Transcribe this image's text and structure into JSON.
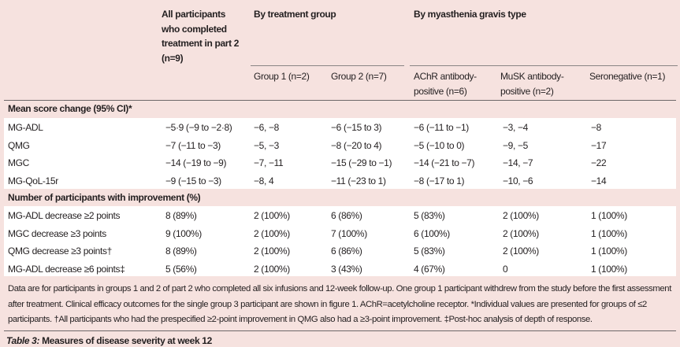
{
  "header": {
    "all_participants": "All participants who completed treatment in part 2 (n=9)",
    "by_treatment_group": "By treatment group",
    "by_mg_type": "By myasthenia gravis type",
    "columns": [
      "Group 1 (n=2)",
      "Group 2 (n=7)",
      "AChR antibody-positive (n=6)",
      "MuSK antibody-positive (n=2)",
      "Seronegative (n=1)"
    ]
  },
  "sections": [
    {
      "title": "Mean score change (95% CI)*",
      "rows": [
        {
          "label": "MG-ADL",
          "values": [
            "−5·9 (−9 to −2·8)",
            "−6, −8",
            "−6 (−15 to 3)",
            "−6 (−11 to −1)",
            "−3, −4",
            "−8"
          ]
        },
        {
          "label": "QMG",
          "values": [
            "−7 (−11 to −3)",
            "−5, −3",
            "−8 (−20 to 4)",
            "−5 (−10 to 0)",
            "−9, −5",
            "−17"
          ]
        },
        {
          "label": "MGC",
          "values": [
            "−14 (−19 to −9)",
            "−7, −11",
            "−15 (−29 to −1)",
            "−14 (−21 to −7)",
            "−14, −7",
            "−22"
          ]
        },
        {
          "label": "MG-QoL-15r",
          "values": [
            "−9 (−15 to −3)",
            "−8, 4",
            "−11 (−23 to 1)",
            "−8 (−17 to 1)",
            "−10, −6",
            "−14"
          ]
        }
      ]
    },
    {
      "title": "Number of participants with improvement (%)",
      "rows": [
        {
          "label": "MG-ADL decrease ≥2 points",
          "values": [
            "8 (89%)",
            "2 (100%)",
            "6 (86%)",
            "5 (83%)",
            "2 (100%)",
            "1 (100%)"
          ]
        },
        {
          "label": "MGC decrease ≥3 points",
          "values": [
            "9 (100%)",
            "2 (100%)",
            "7 (100%)",
            "6 (100%)",
            "2 (100%)",
            "1 (100%)"
          ]
        },
        {
          "label": "QMG decrease ≥3 points†",
          "values": [
            "8 (89%)",
            "2 (100%)",
            "6 (86%)",
            "5 (83%)",
            "2 (100%)",
            "1 (100%)"
          ]
        },
        {
          "label": "MG-ADL decrease ≥6 points‡",
          "values": [
            "5 (56%)",
            "2 (100%)",
            "3 (43%)",
            "4 (67%)",
            "0",
            "1 (100%)"
          ]
        }
      ]
    }
  ],
  "footnote": "Data are for participants in groups 1 and 2 of part 2 who completed all six infusions and 12-week follow-up. One group 1 participant withdrew from the study before the first assessment after treatment. Clinical efficacy outcomes for the single group 3 participant are shown in figure 1. AChR=acetylcholine receptor. *Individual values are presented for groups of ≤2 participants. †All participants who had the prespecified ≥2-point improvement in QMG also had a ≥3-point improvement. ‡Post-hoc analysis of depth of response.",
  "caption": {
    "label": "Table 3:",
    "text": " Measures of disease severity at week 12"
  }
}
